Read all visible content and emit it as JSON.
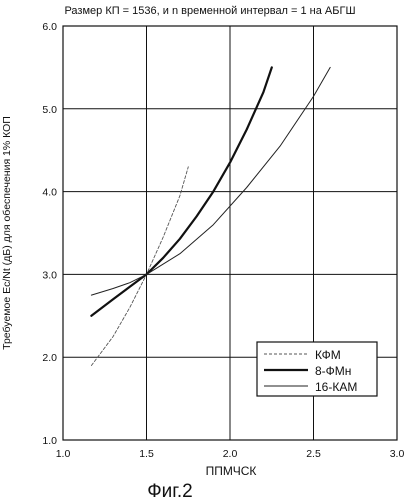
{
  "chart_data": {
    "type": "line",
    "title": "Размер КП = 1536, и n временной интервал = 1 на АБГШ",
    "xlabel": "ППМЧСК",
    "ylabel": "Требуемое Ec/Nt (дБ) для обеспечения 1% КОП",
    "xlim": [
      1.0,
      3.0
    ],
    "ylim": [
      1.0,
      6.0
    ],
    "xticks": [
      "1.0",
      "1.5",
      "2.0",
      "2.5",
      "3.0"
    ],
    "yticks": [
      "1.0",
      "2.0",
      "3.0",
      "4.0",
      "5.0",
      "6.0"
    ],
    "grid": true,
    "legend_position": "bottom-right",
    "series": [
      {
        "name": "КФМ",
        "style": "dashed",
        "color": "#555555",
        "x": [
          1.17,
          1.3,
          1.4,
          1.5,
          1.6,
          1.7,
          1.75
        ],
        "y": [
          1.9,
          2.25,
          2.6,
          3.0,
          3.45,
          3.95,
          4.3
        ]
      },
      {
        "name": "8-ФМн",
        "style": "thick",
        "color": "#111111",
        "x": [
          1.17,
          1.3,
          1.4,
          1.5,
          1.6,
          1.7,
          1.8,
          1.9,
          2.0,
          2.1,
          2.2,
          2.25
        ],
        "y": [
          2.5,
          2.7,
          2.85,
          3.0,
          3.2,
          3.43,
          3.7,
          4.0,
          4.35,
          4.75,
          5.2,
          5.5
        ]
      },
      {
        "name": "16-КАМ",
        "style": "thin",
        "color": "#222222",
        "x": [
          1.17,
          1.3,
          1.4,
          1.5,
          1.7,
          1.9,
          2.1,
          2.3,
          2.5,
          2.6
        ],
        "y": [
          2.75,
          2.83,
          2.9,
          3.0,
          3.25,
          3.6,
          4.05,
          4.55,
          5.15,
          5.5
        ]
      }
    ]
  },
  "caption": "Фиг.2"
}
